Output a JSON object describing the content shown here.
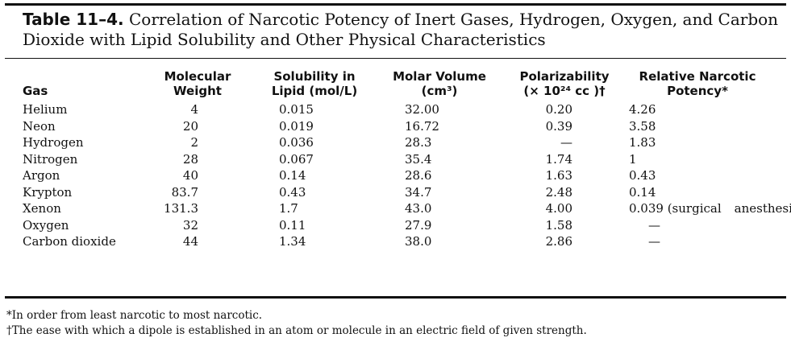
{
  "table": {
    "label": "Table 11–4.",
    "caption": "Correlation of Narcotic Potency of Inert Gases, Hydrogen, Oxygen, and Carbon Dioxide with Lipid Solubility and Other Physical Characteristics",
    "headers": {
      "gas": "Gas",
      "mw_line1": "Molecular",
      "mw_line2": "Weight",
      "sol_line1": "Solubility in",
      "sol_line2": "Lipid (mol/L)",
      "mv_line1": "Molar Volume",
      "mv_line2": "(cm³)",
      "pol_line1": "Polarizability",
      "pol_line2": "(× 10²⁴ cc )†",
      "pot_line1": "Relative Narcotic",
      "pot_line2": "Potency*"
    },
    "rows": [
      {
        "gas": "Helium",
        "mw": "4",
        "sol": "0.015",
        "mv": "32.00",
        "pol": "0.20",
        "pot": "4.26",
        "pot2": ""
      },
      {
        "gas": "Neon",
        "mw": "20",
        "sol": "0.019",
        "mv": "16.72",
        "pol": "0.39",
        "pot": "3.58",
        "pot2": ""
      },
      {
        "gas": "Hydrogen",
        "mw": "2",
        "sol": "0.036",
        "mv": "28.3",
        "pol": "—",
        "pot": "1.83",
        "pot2": ""
      },
      {
        "gas": "Nitrogen",
        "mw": "28",
        "sol": "0.067",
        "mv": "35.4",
        "pol": "1.74",
        "pot": "1",
        "pot2": ""
      },
      {
        "gas": "Argon",
        "mw": "40",
        "sol": "0.14",
        "mv": "28.6",
        "pol": "1.63",
        "pot": "0.43",
        "pot2": ""
      },
      {
        "gas": "Krypton",
        "mw": "83.7",
        "sol": "0.43",
        "mv": "34.7",
        "pol": "2.48",
        "pot": "0.14",
        "pot2": ""
      },
      {
        "gas": "Xenon",
        "mw": "131.3",
        "sol": "1.7",
        "mv": "43.0",
        "pol": "4.00",
        "pot": "0.039 (surgical",
        "pot2": "anesthesia)"
      },
      {
        "gas": "Oxygen",
        "mw": "32",
        "sol": "0.11",
        "mv": "27.9",
        "pol": "1.58",
        "pot": "—",
        "pot2": ""
      },
      {
        "gas": "Carbon dioxide",
        "mw": "44",
        "sol": "1.34",
        "mv": "38.0",
        "pol": "2.86",
        "pot": "—",
        "pot2": ""
      }
    ]
  },
  "footnotes": {
    "note1": "*In order from least narcotic to most narcotic.",
    "note2": "†The ease with which a dipole is established in an atom or molecule in an electric field of given strength."
  }
}
